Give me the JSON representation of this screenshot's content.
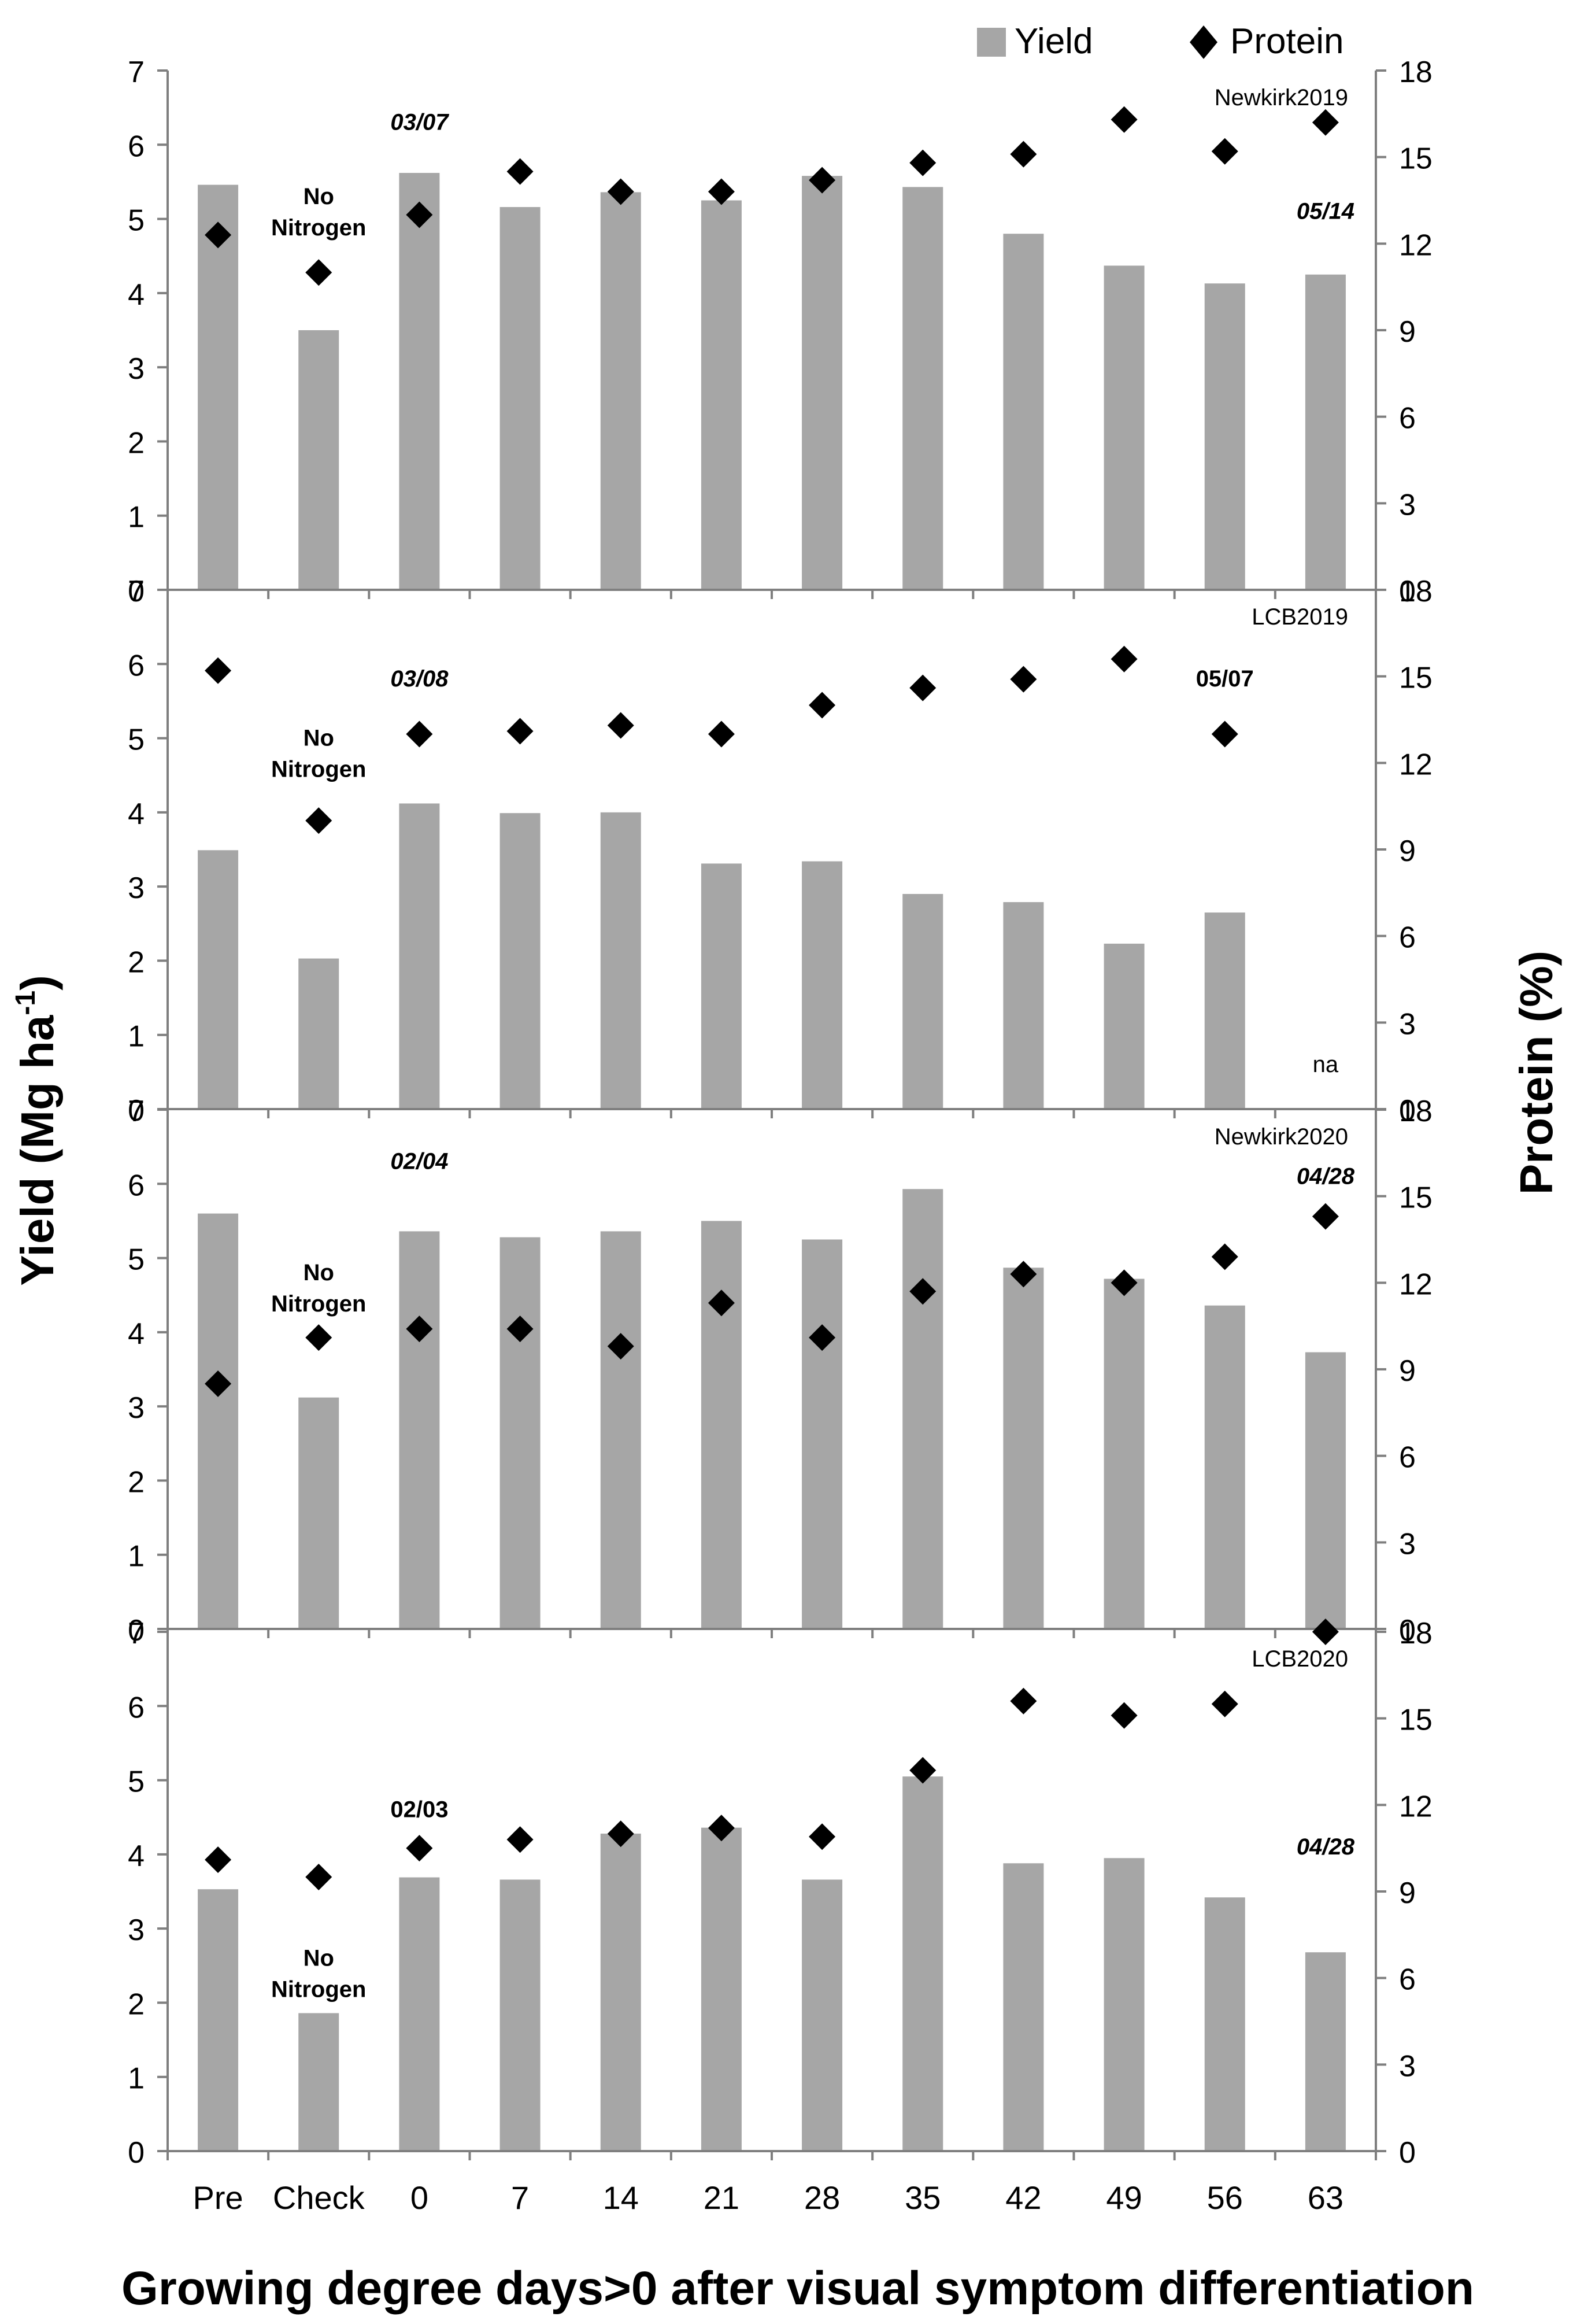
{
  "legend": {
    "yield_label": "Yield",
    "protein_label": "Protein"
  },
  "y_axis_left": {
    "label_main": "Yield (Mg ha",
    "label_sup": "-1",
    "label_close": ")"
  },
  "y_axis_right": {
    "label": "Protein (%)"
  },
  "x_axis": {
    "label": "Growing degree days>0 after visual symptom differentiation"
  },
  "colors": {
    "bar": "#a6a6a6",
    "marker": "#000000",
    "axis": "#7f7f7f",
    "text": "#000000"
  },
  "chart_data": [
    {
      "type": "bar",
      "title": "Newkirk2019",
      "categories": [
        "Pre",
        "Check",
        "0",
        "7",
        "14",
        "21",
        "28",
        "35",
        "42",
        "49",
        "56",
        "63"
      ],
      "series": [
        {
          "name": "Yield",
          "axis": "left",
          "values": [
            5.46,
            3.5,
            5.62,
            5.16,
            5.36,
            5.25,
            5.58,
            5.43,
            4.8,
            4.37,
            4.13,
            4.25
          ]
        },
        {
          "name": "Protein",
          "axis": "right",
          "marker": "diamond",
          "values": [
            12.3,
            11.0,
            13.0,
            14.5,
            13.8,
            13.8,
            14.2,
            14.8,
            15.1,
            16.3,
            15.2,
            16.2
          ]
        }
      ],
      "ylim_left": [
        0,
        7
      ],
      "ylim_right": [
        0,
        18
      ],
      "yticks_left": [
        0,
        1,
        2,
        3,
        4,
        5,
        6,
        7
      ],
      "yticks_right": [
        0,
        3,
        6,
        9,
        12,
        15,
        18
      ],
      "annotations": [
        {
          "text": "No\nNitrogen",
          "category": "Check",
          "y_left": 5.2,
          "style": "bold"
        },
        {
          "text": "03/07",
          "category": "0",
          "y_left": 6.2,
          "style": "bold-italic"
        },
        {
          "text": "05/14",
          "category": "63",
          "y_left": 5.0,
          "style": "bold-italic"
        }
      ]
    },
    {
      "type": "bar",
      "title": "LCB2019",
      "categories": [
        "Pre",
        "Check",
        "0",
        "7",
        "14",
        "21",
        "28",
        "35",
        "42",
        "49",
        "56",
        "63"
      ],
      "series": [
        {
          "name": "Yield",
          "axis": "left",
          "values": [
            3.49,
            2.03,
            4.12,
            3.99,
            4.0,
            3.31,
            3.34,
            2.9,
            2.79,
            2.23,
            2.65,
            null
          ]
        },
        {
          "name": "Protein",
          "axis": "right",
          "marker": "diamond",
          "values": [
            15.2,
            10.0,
            13.0,
            13.1,
            13.3,
            13.0,
            14.0,
            14.6,
            14.9,
            15.6,
            13.0,
            null
          ]
        }
      ],
      "ylim_left": [
        0,
        7
      ],
      "ylim_right": [
        0,
        18
      ],
      "yticks_left": [
        0,
        1,
        2,
        3,
        4,
        5,
        6,
        7
      ],
      "yticks_right": [
        0,
        3,
        6,
        9,
        12,
        15,
        18
      ],
      "annotations": [
        {
          "text": "No\nNitrogen",
          "category": "Check",
          "y_left": 4.9,
          "style": "bold"
        },
        {
          "text": "03/08",
          "category": "0",
          "y_left": 5.7,
          "style": "bold-italic"
        },
        {
          "text": "05/07",
          "category": "56",
          "y_left": 5.7,
          "style": "bold"
        },
        {
          "text": "na",
          "category": "63",
          "y_left": 0.5,
          "style": "normal"
        }
      ]
    },
    {
      "type": "bar",
      "title": "Newkirk2020",
      "categories": [
        "Pre",
        "Check",
        "0",
        "7",
        "14",
        "21",
        "28",
        "35",
        "42",
        "49",
        "56",
        "63"
      ],
      "series": [
        {
          "name": "Yield",
          "axis": "left",
          "values": [
            5.6,
            3.12,
            5.36,
            5.28,
            5.36,
            5.5,
            5.25,
            5.93,
            4.87,
            4.72,
            4.36,
            3.73
          ]
        },
        {
          "name": "Protein",
          "axis": "right",
          "marker": "diamond",
          "values": [
            8.5,
            10.1,
            10.4,
            10.4,
            9.8,
            11.3,
            10.1,
            11.7,
            12.3,
            12.0,
            12.9,
            14.3
          ]
        }
      ],
      "ylim_left": [
        0,
        7
      ],
      "ylim_right": [
        0,
        18
      ],
      "yticks_left": [
        0,
        1,
        2,
        3,
        4,
        5,
        6,
        7
      ],
      "yticks_right": [
        0,
        3,
        6,
        9,
        12,
        15,
        18
      ],
      "annotations": [
        {
          "text": "No\nNitrogen",
          "category": "Check",
          "y_left": 4.7,
          "style": "bold"
        },
        {
          "text": "02/04",
          "category": "0",
          "y_left": 6.2,
          "style": "bold-italic"
        },
        {
          "text": "04/28",
          "category": "63",
          "y_left": 6.0,
          "style": "bold-italic"
        }
      ]
    },
    {
      "type": "bar",
      "title": "LCB2020",
      "categories": [
        "Pre",
        "Check",
        "0",
        "7",
        "14",
        "21",
        "28",
        "35",
        "42",
        "49",
        "56",
        "63"
      ],
      "series": [
        {
          "name": "Yield",
          "axis": "left",
          "values": [
            3.53,
            1.86,
            3.69,
            3.66,
            4.28,
            4.36,
            3.66,
            5.05,
            3.88,
            3.95,
            3.42,
            2.68
          ]
        },
        {
          "name": "Protein",
          "axis": "right",
          "marker": "diamond",
          "values": [
            10.1,
            9.5,
            10.5,
            10.8,
            11.0,
            11.2,
            10.9,
            13.2,
            15.6,
            15.1,
            15.5,
            18.0
          ]
        }
      ],
      "ylim_left": [
        0,
        7
      ],
      "ylim_right": [
        0,
        18
      ],
      "yticks_left": [
        0,
        1,
        2,
        3,
        4,
        5,
        6,
        7
      ],
      "yticks_right": [
        0,
        3,
        6,
        9,
        12,
        15,
        18
      ],
      "annotations": [
        {
          "text": "No\nNitrogen",
          "category": "Check",
          "y_left": 2.5,
          "style": "bold"
        },
        {
          "text": "02/03",
          "category": "0",
          "y_left": 4.5,
          "style": "bold"
        },
        {
          "text": "04/28",
          "category": "63",
          "y_left": 4.0,
          "style": "bold-italic"
        }
      ]
    }
  ]
}
